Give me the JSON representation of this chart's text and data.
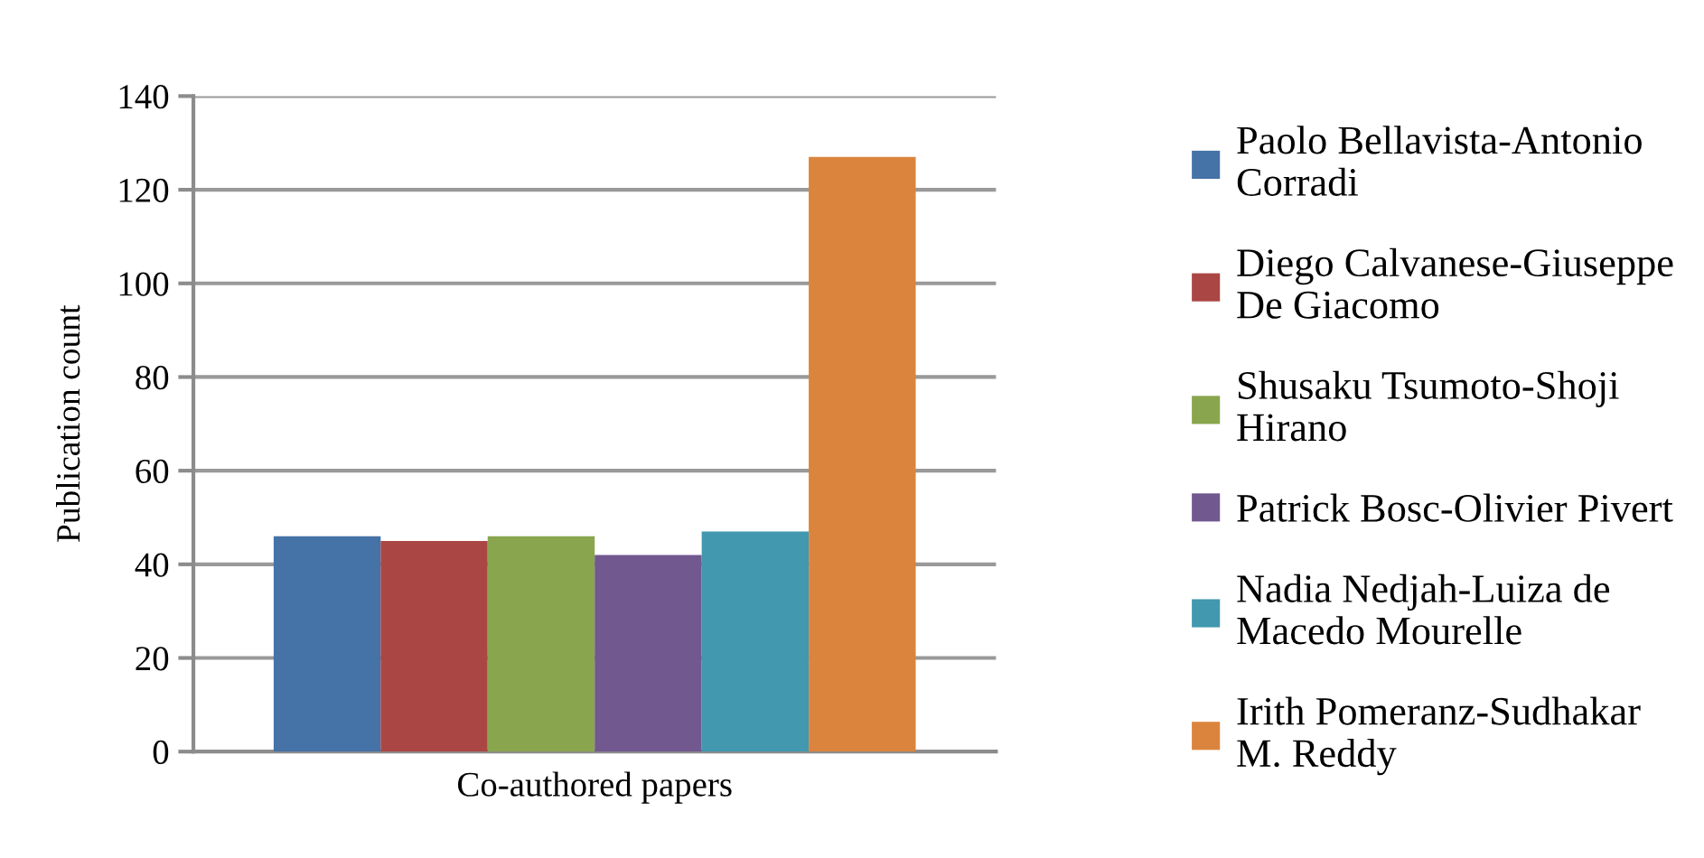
{
  "chart_data": {
    "type": "bar",
    "ylabel": "Publication count",
    "categories": [
      "Co-authored papers"
    ],
    "series": [
      {
        "name": "Paolo Bellavista-Antonio\nCorradi",
        "color": "#4572a7",
        "values": [
          46
        ]
      },
      {
        "name": "Diego Calvanese-Giuseppe\nDe Giacomo",
        "color": "#aa4643",
        "values": [
          45
        ]
      },
      {
        "name": "Shusaku Tsumoto-Shoji\nHirano",
        "color": "#89a54e",
        "values": [
          46
        ]
      },
      {
        "name": "Patrick Bosc-Olivier Pivert",
        "color": "#71588f",
        "values": [
          42
        ]
      },
      {
        "name": "Nadia Nedjah-Luiza de\nMacedo Mourelle",
        "color": "#4198af",
        "values": [
          47
        ]
      },
      {
        "name": "Irith Pomeranz-Sudhakar\nM. Reddy",
        "color": "#db843d",
        "values": [
          127
        ]
      }
    ],
    "ylim": [
      0,
      140
    ],
    "yticks": [
      0,
      20,
      40,
      60,
      80,
      100,
      120,
      140
    ],
    "grid": "y",
    "legend": "right"
  }
}
